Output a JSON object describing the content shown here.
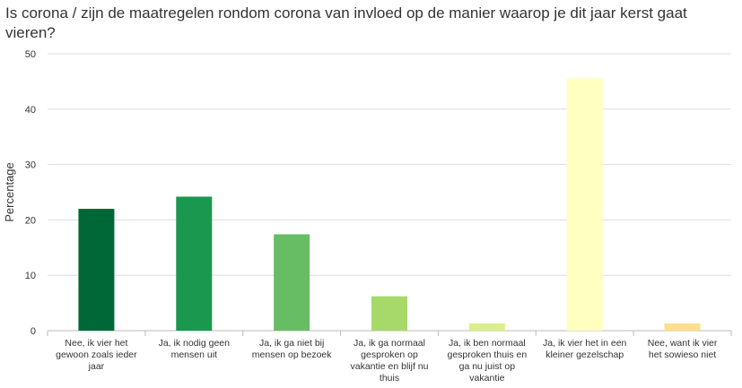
{
  "chart_data": {
    "type": "bar",
    "title": "Is corona / zijn de maatregelen rondom corona van invloed op de manier waarop je dit jaar kerst gaat vieren?",
    "ylabel": "Percentage",
    "xlabel": "",
    "ylim": [
      0,
      50
    ],
    "yticks": [
      0,
      10,
      20,
      30,
      40,
      50
    ],
    "grid": true,
    "legend": "none",
    "categories": [
      [
        "Nee, ik vier het",
        "gewoon zoals ieder",
        "jaar"
      ],
      [
        "Ja, ik nodig geen",
        "mensen uit"
      ],
      [
        "Ja, ik ga niet bij",
        "mensen op bezoek"
      ],
      [
        "Ja, ik ga normaal",
        "gesproken op",
        "vakantie en blijf nu",
        "thuis"
      ],
      [
        "Ja, ik ben normaal",
        "gesproken thuis en",
        "ga nu juist op",
        "vakantie"
      ],
      [
        "Ja, ik vier het in een",
        "kleiner gezelschap"
      ],
      [
        "Nee, want ik vier",
        "het sowieso niet"
      ]
    ],
    "values": [
      22,
      24.2,
      17.4,
      6.2,
      1.3,
      45.6,
      1.3
    ],
    "colors": [
      "#006837",
      "#1a9850",
      "#66bd63",
      "#a6d96a",
      "#d9ef8b",
      "#ffffbf",
      "#fee08b"
    ]
  }
}
